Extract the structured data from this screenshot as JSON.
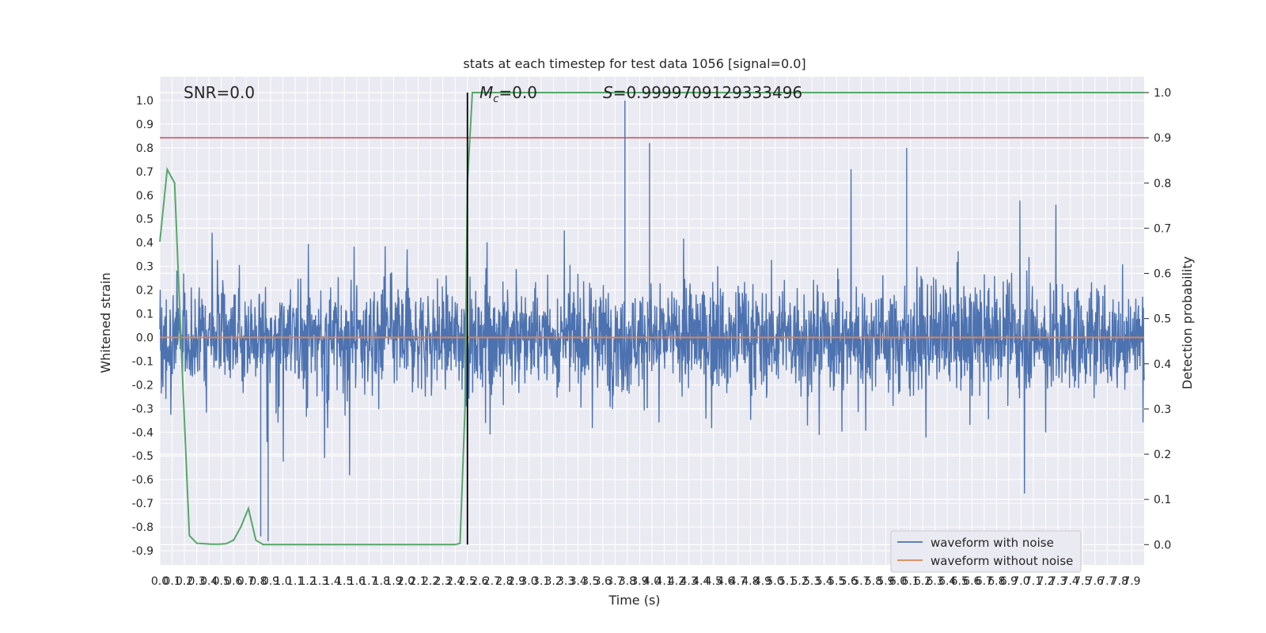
{
  "chart_data": {
    "type": "line",
    "title": "stats at each timestep for test data 1056 [signal=0.0]",
    "xlabel": "Time (s)",
    "ylabel_left": "Whitened strain",
    "ylabel_right": "Detection probability",
    "xlim": [
      0.0,
      8.0
    ],
    "ylim_left": [
      -0.96,
      1.1
    ],
    "ylim_right": [
      -0.045,
      1.035
    ],
    "x_ticks": [
      "0.0",
      "0.1",
      "0.2",
      "0.3",
      "0.4",
      "0.5",
      "0.6",
      "0.7",
      "0.8",
      "0.9",
      "1.0",
      "1.1",
      "1.2",
      "1.3",
      "1.4",
      "1.5",
      "1.6",
      "1.7",
      "1.8",
      "1.9",
      "2.0",
      "2.1",
      "2.2",
      "2.3",
      "2.4",
      "2.5",
      "2.6",
      "2.7",
      "2.8",
      "2.9",
      "3.0",
      "3.1",
      "3.2",
      "3.3",
      "3.4",
      "3.5",
      "3.6",
      "3.7",
      "3.8",
      "3.9",
      "4.0",
      "4.1",
      "4.2",
      "4.3",
      "4.4",
      "4.5",
      "4.6",
      "4.7",
      "4.8",
      "4.9",
      "5.0",
      "5.1",
      "5.2",
      "5.3",
      "5.4",
      "5.5",
      "5.6",
      "5.7",
      "5.8",
      "5.9",
      "6.0",
      "6.1",
      "6.2",
      "6.3",
      "6.4",
      "6.5",
      "6.6",
      "6.7",
      "6.8",
      "6.9",
      "7.0",
      "7.1",
      "7.2",
      "7.3",
      "7.4",
      "7.5",
      "7.6",
      "7.7",
      "7.8",
      "7.9"
    ],
    "y_ticks_left": [
      "-0.9",
      "-0.8",
      "-0.7",
      "-0.6",
      "-0.5",
      "-0.4",
      "-0.3",
      "-0.2",
      "-0.1",
      "0.0",
      "0.1",
      "0.2",
      "0.3",
      "0.4",
      "0.5",
      "0.6",
      "0.7",
      "0.8",
      "0.9",
      "1.0"
    ],
    "y_ticks_right": [
      "0.0",
      "0.1",
      "0.2",
      "0.3",
      "0.4",
      "0.5",
      "0.6",
      "0.7",
      "0.8",
      "0.9",
      "1.0"
    ],
    "series": [
      {
        "name": "waveform with noise",
        "color": "#4c72b0",
        "axis": "left",
        "style": "dense noise, approx. amplitude ±0.3 with spikes up to 1.0 and down to -0.86"
      },
      {
        "name": "waveform without noise",
        "color": "#dd8452",
        "axis": "left",
        "values_constant": 0.0
      },
      {
        "name": "",
        "color": "#55a868",
        "axis": "right",
        "x": [
          0.0,
          0.06,
          0.12,
          0.18,
          0.24,
          0.3,
          0.36,
          0.42,
          0.48,
          0.54,
          0.6,
          0.66,
          0.72,
          0.78,
          0.84,
          0.9,
          1.0,
          1.5,
          2.0,
          2.4,
          2.44,
          2.48,
          2.5,
          2.54,
          3.0,
          4.0,
          5.0,
          6.0,
          7.0,
          8.0
        ],
        "values": [
          0.67,
          0.83,
          0.8,
          0.4,
          0.02,
          0.003,
          0.002,
          0.001,
          0.001,
          0.002,
          0.01,
          0.04,
          0.08,
          0.01,
          0.0,
          0.0,
          0.0,
          0.0,
          0.0,
          0.0,
          0.003,
          0.3,
          0.8,
          1.0,
          1.0,
          1.0,
          1.0,
          1.0,
          1.0,
          1.0
        ]
      }
    ],
    "threshold_right": 0.9,
    "vline": {
      "x": 2.5,
      "ymin_right": 0.0,
      "ymax_right": 1.0
    },
    "annotations": [
      {
        "text": "SNR=0.0"
      },
      {
        "text_prefix": "M",
        "text_sub": "c",
        "text_suffix": "=0.0"
      },
      {
        "text": "S=0.9999709129333496"
      }
    ],
    "grid": true,
    "legend_placement": "lower-right",
    "colors": {
      "background": "#eaeaf2",
      "grid": "#ffffff",
      "threshold": "#c44e52",
      "vline": "#000000"
    }
  }
}
